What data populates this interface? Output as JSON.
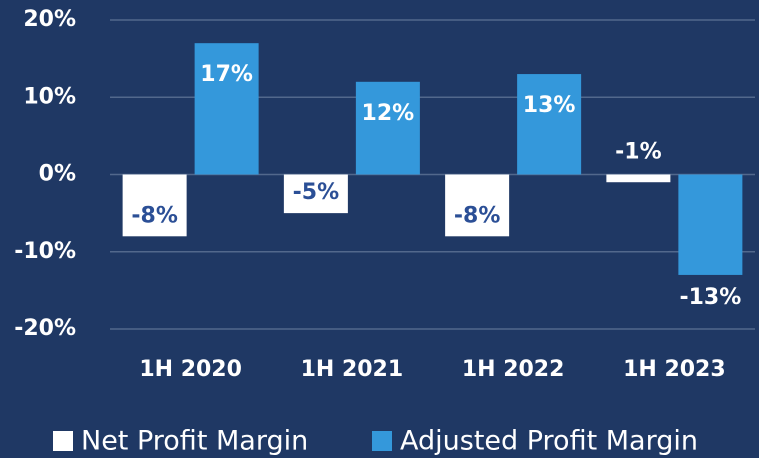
{
  "chart_data": {
    "type": "bar",
    "categories": [
      "1H 2020",
      "1H 2021",
      "1H 2022",
      "1H 2023"
    ],
    "series": [
      {
        "name": "Net Profit Margin",
        "color": "#ffffff",
        "values": [
          -8,
          -5,
          -8,
          -1
        ],
        "value_labels": [
          "-8%",
          "-5%",
          "-8%",
          "-1%"
        ]
      },
      {
        "name": "Adjusted Profit Margin",
        "color": "#3498db",
        "values": [
          17,
          12,
          13,
          -13
        ],
        "value_labels": [
          "17%",
          "12%",
          "13%",
          "-13%"
        ]
      }
    ],
    "ylim": [
      -20,
      20
    ],
    "yticks": [
      {
        "value": -20,
        "label": "-20%"
      },
      {
        "value": -10,
        "label": "-10%"
      },
      {
        "value": 0,
        "label": "0%"
      },
      {
        "value": 10,
        "label": "10%"
      },
      {
        "value": 20,
        "label": "20%"
      }
    ],
    "grid": true,
    "legend": "bottom"
  }
}
